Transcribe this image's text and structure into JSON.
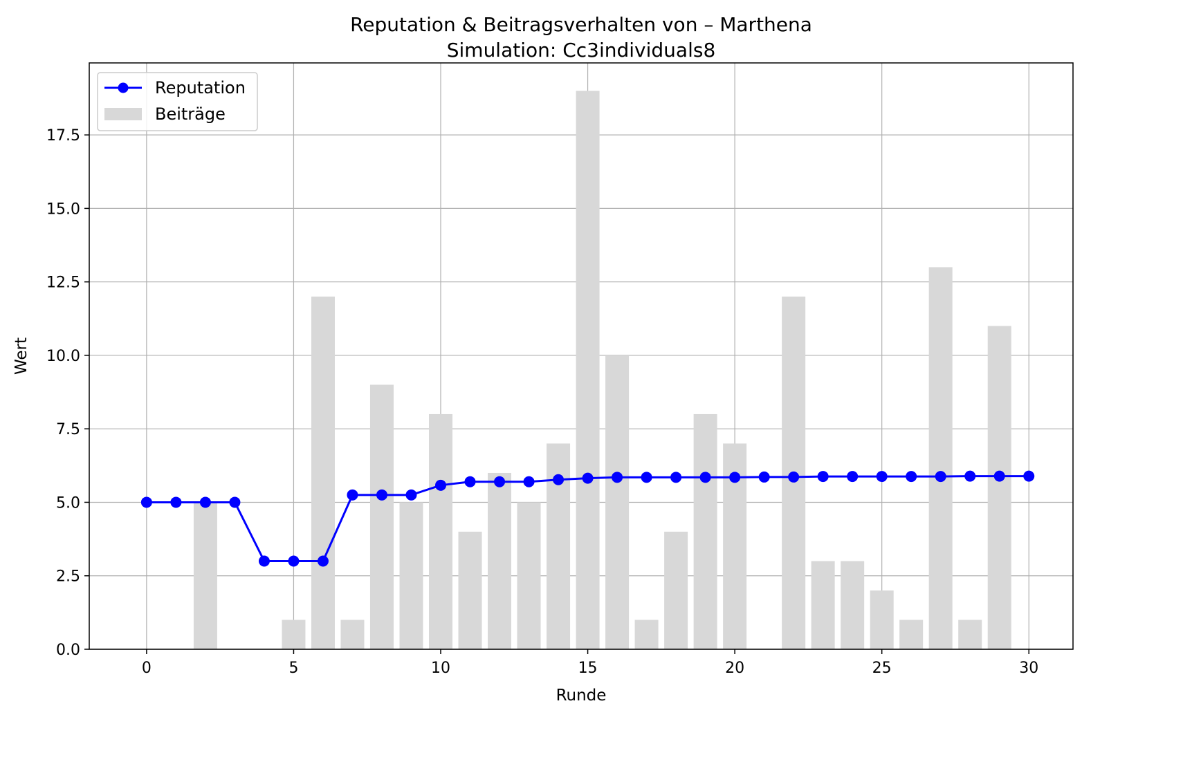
{
  "chart_data": {
    "type": "bar+line",
    "title": "Reputation & Beitragsverhalten von – Marthena",
    "subtitle": "Simulation: Cc3individuals8",
    "xlabel": "Runde",
    "ylabel": "Wert",
    "xlim": [
      -1.95,
      31.5
    ],
    "ylim": [
      0,
      19.95
    ],
    "x_ticks": [
      0,
      5,
      10,
      15,
      20,
      25,
      30
    ],
    "y_ticks": [
      0.0,
      2.5,
      5.0,
      7.5,
      10.0,
      12.5,
      15.0,
      17.5
    ],
    "x_tick_labels": [
      "0",
      "5",
      "10",
      "15",
      "20",
      "25",
      "30"
    ],
    "y_tick_labels": [
      "0.0",
      "2.5",
      "5.0",
      "7.5",
      "10.0",
      "12.5",
      "15.0",
      "17.5"
    ],
    "grid": true,
    "legend_position": "top-left",
    "series": [
      {
        "name": "Reputation",
        "kind": "line",
        "marker": "circle",
        "color": "#0000ff",
        "x": [
          0,
          1,
          2,
          3,
          4,
          5,
          6,
          7,
          8,
          9,
          10,
          11,
          12,
          13,
          14,
          15,
          16,
          17,
          18,
          19,
          20,
          21,
          22,
          23,
          24,
          25,
          26,
          27,
          28,
          29,
          30
        ],
        "values": [
          5.0,
          5.0,
          5.0,
          5.0,
          3.0,
          3.0,
          3.0,
          5.25,
          5.25,
          5.25,
          5.58,
          5.7,
          5.7,
          5.7,
          5.77,
          5.82,
          5.85,
          5.85,
          5.85,
          5.85,
          5.85,
          5.86,
          5.86,
          5.88,
          5.88,
          5.88,
          5.88,
          5.88,
          5.89,
          5.89,
          5.89
        ]
      },
      {
        "name": "Beiträge",
        "kind": "bar",
        "color": "#d8d8d8",
        "x": [
          0,
          1,
          2,
          3,
          4,
          5,
          6,
          7,
          8,
          9,
          10,
          11,
          12,
          13,
          14,
          15,
          16,
          17,
          18,
          19,
          20,
          21,
          22,
          23,
          24,
          25,
          26,
          27,
          28,
          29,
          30
        ],
        "values": [
          0,
          0,
          5,
          0,
          0,
          1,
          12,
          1,
          9,
          5,
          8,
          4,
          6,
          5,
          7,
          19,
          10,
          1,
          4,
          8,
          7,
          0,
          12,
          3,
          3,
          2,
          1,
          13,
          1,
          11,
          0
        ]
      }
    ]
  }
}
